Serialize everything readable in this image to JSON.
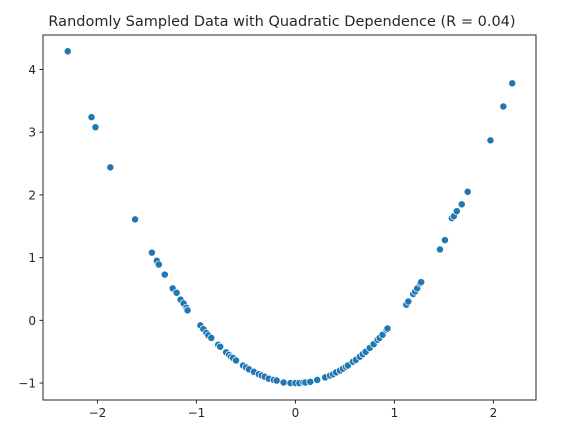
{
  "chart_data": {
    "type": "scatter",
    "title": "Randomly Sampled Data with Quadratic Dependence (R = 0.04)",
    "xlabel": "",
    "ylabel": "",
    "xlim": [
      -2.55,
      2.43
    ],
    "ylim": [
      -1.27,
      4.55
    ],
    "xticks": [
      -2,
      -1,
      0,
      1,
      2
    ],
    "xtick_labels": [
      "−2",
      "−1",
      "0",
      "1",
      "2"
    ],
    "yticks": [
      -1,
      0,
      1,
      2,
      3,
      4
    ],
    "ytick_labels": [
      "−1",
      "0",
      "1",
      "2",
      "3",
      "4"
    ],
    "grid": false,
    "marker_color": "#1f77b4",
    "points": [
      {
        "x": -2.3,
        "y": 4.29
      },
      {
        "x": -2.06,
        "y": 3.24
      },
      {
        "x": -2.02,
        "y": 3.08
      },
      {
        "x": -1.87,
        "y": 2.44
      },
      {
        "x": -1.62,
        "y": 1.61
      },
      {
        "x": -1.45,
        "y": 1.08
      },
      {
        "x": -1.4,
        "y": 0.95
      },
      {
        "x": -1.38,
        "y": 0.89
      },
      {
        "x": -1.32,
        "y": 0.73
      },
      {
        "x": -1.24,
        "y": 0.51
      },
      {
        "x": -1.2,
        "y": 0.44
      },
      {
        "x": -1.16,
        "y": 0.33
      },
      {
        "x": -1.13,
        "y": 0.27
      },
      {
        "x": -1.1,
        "y": 0.2
      },
      {
        "x": -1.09,
        "y": 0.16
      },
      {
        "x": -0.96,
        "y": -0.08
      },
      {
        "x": -0.93,
        "y": -0.14
      },
      {
        "x": -0.9,
        "y": -0.2
      },
      {
        "x": -0.88,
        "y": -0.24
      },
      {
        "x": -0.85,
        "y": -0.28
      },
      {
        "x": -0.78,
        "y": -0.39
      },
      {
        "x": -0.76,
        "y": -0.42
      },
      {
        "x": -0.7,
        "y": -0.51
      },
      {
        "x": -0.67,
        "y": -0.55
      },
      {
        "x": -0.65,
        "y": -0.58
      },
      {
        "x": -0.63,
        "y": -0.6
      },
      {
        "x": -0.6,
        "y": -0.64
      },
      {
        "x": -0.53,
        "y": -0.72
      },
      {
        "x": -0.5,
        "y": -0.75
      },
      {
        "x": -0.47,
        "y": -0.78
      },
      {
        "x": -0.42,
        "y": -0.82
      },
      {
        "x": -0.37,
        "y": -0.86
      },
      {
        "x": -0.34,
        "y": -0.88
      },
      {
        "x": -0.31,
        "y": -0.9
      },
      {
        "x": -0.27,
        "y": -0.93
      },
      {
        "x": -0.22,
        "y": -0.95
      },
      {
        "x": -0.19,
        "y": -0.96
      },
      {
        "x": -0.12,
        "y": -0.99
      },
      {
        "x": -0.05,
        "y": -1.0
      },
      {
        "x": 0.0,
        "y": -1.0
      },
      {
        "x": 0.04,
        "y": -1.0
      },
      {
        "x": 0.08,
        "y": -0.99
      },
      {
        "x": 0.1,
        "y": -0.99
      },
      {
        "x": 0.15,
        "y": -0.98
      },
      {
        "x": 0.22,
        "y": -0.95
      },
      {
        "x": 0.3,
        "y": -0.91
      },
      {
        "x": 0.35,
        "y": -0.88
      },
      {
        "x": 0.38,
        "y": -0.86
      },
      {
        "x": 0.41,
        "y": -0.83
      },
      {
        "x": 0.45,
        "y": -0.8
      },
      {
        "x": 0.48,
        "y": -0.77
      },
      {
        "x": 0.51,
        "y": -0.74
      },
      {
        "x": 0.53,
        "y": -0.72
      },
      {
        "x": 0.58,
        "y": -0.66
      },
      {
        "x": 0.61,
        "y": -0.63
      },
      {
        "x": 0.65,
        "y": -0.58
      },
      {
        "x": 0.68,
        "y": -0.54
      },
      {
        "x": 0.71,
        "y": -0.5
      },
      {
        "x": 0.75,
        "y": -0.44
      },
      {
        "x": 0.79,
        "y": -0.38
      },
      {
        "x": 0.83,
        "y": -0.31
      },
      {
        "x": 0.85,
        "y": -0.28
      },
      {
        "x": 0.88,
        "y": -0.23
      },
      {
        "x": 0.92,
        "y": -0.15
      },
      {
        "x": 0.93,
        "y": -0.13
      },
      {
        "x": 1.12,
        "y": 0.25
      },
      {
        "x": 1.14,
        "y": 0.3
      },
      {
        "x": 1.19,
        "y": 0.42
      },
      {
        "x": 1.21,
        "y": 0.46
      },
      {
        "x": 1.23,
        "y": 0.51
      },
      {
        "x": 1.26,
        "y": 0.59
      },
      {
        "x": 1.27,
        "y": 0.61
      },
      {
        "x": 1.46,
        "y": 1.13
      },
      {
        "x": 1.51,
        "y": 1.28
      },
      {
        "x": 1.58,
        "y": 1.63
      },
      {
        "x": 1.6,
        "y": 1.66
      },
      {
        "x": 1.63,
        "y": 1.74
      },
      {
        "x": 1.68,
        "y": 1.85
      },
      {
        "x": 1.74,
        "y": 2.05
      },
      {
        "x": 1.97,
        "y": 2.87
      },
      {
        "x": 2.1,
        "y": 3.41
      },
      {
        "x": 2.19,
        "y": 3.78
      }
    ]
  }
}
